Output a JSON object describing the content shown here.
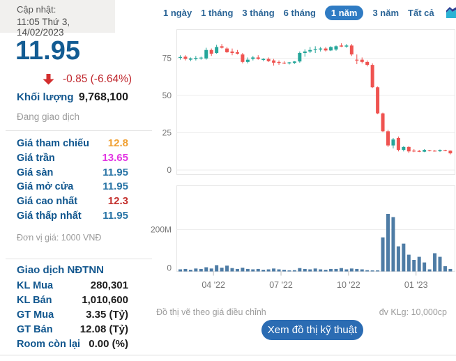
{
  "update": {
    "label": "Cập nhật:",
    "datetime": "11:05 Thứ 3, 14/02/2023"
  },
  "quote": {
    "price": "11.95",
    "change": "-0.85 (-6.64%)",
    "volume_label": "Khối lượng",
    "volume": "9,768,100",
    "status": "Đang giao dịch"
  },
  "price_table": {
    "rows": [
      {
        "label": "Giá tham chiếu",
        "value": "12.8",
        "color": "#f0a033"
      },
      {
        "label": "Giá trần",
        "value": "13.65",
        "color": "#e234e2"
      },
      {
        "label": "Giá sàn",
        "value": "11.95",
        "color": "#2773a5"
      },
      {
        "label": "Giá mở cửa",
        "value": "11.95",
        "color": "#2773a5"
      },
      {
        "label": "Giá cao nhất",
        "value": "12.3",
        "color": "#c4312e"
      },
      {
        "label": "Giá thấp nhất",
        "value": "11.95",
        "color": "#2773a5"
      }
    ],
    "unit_note": "Đơn vị giá: 1000 VNĐ"
  },
  "foreign": {
    "title": "Giao dịch NĐTNN",
    "rows": [
      {
        "label": "KL Mua",
        "value": "280,301"
      },
      {
        "label": "KL Bán",
        "value": "1,010,600"
      },
      {
        "label": "GT Mua",
        "value": "3.35 (Tỷ)"
      },
      {
        "label": "GT Bán",
        "value": "12.08 (Tỷ)"
      },
      {
        "label": "Room còn lại",
        "value": "0.00 (%)"
      }
    ]
  },
  "tabs": {
    "items": [
      "1 ngày",
      "1 tháng",
      "3 tháng",
      "6 tháng",
      "1 năm",
      "3 năm",
      "Tất cả"
    ],
    "active": "1 năm"
  },
  "footer": {
    "note": "Đồ thị vẽ theo giá điều chỉnh",
    "unit": "đv KLg: 10,000cp",
    "button_label": "Xem đồ thị kỹ thuật"
  },
  "colors": {
    "accent_blue": "#135c93",
    "label_blue": "#10568e",
    "tab_blue": "#2a6496",
    "tab_active_bg": "#2f7bc3",
    "change_red": "#c0272d",
    "button_bg": "#2b6cb3"
  },
  "chart_data": {
    "type": "candlestick",
    "title": "",
    "legend": [],
    "x_ticks": [
      "04 '22",
      "07 '22",
      "10 '22",
      "01 '23"
    ],
    "price_axis": {
      "ticks": [
        75,
        50,
        25,
        0
      ],
      "range": [
        0,
        95
      ],
      "grid": true
    },
    "volume_axis": {
      "tick_labels": [
        "200M",
        "0"
      ],
      "tick_values_millions": [
        200,
        0
      ],
      "range_millions": [
        0,
        460
      ]
    },
    "up_color": "#26a69a",
    "down_color": "#ef5350",
    "volume_color": "#4e7ca5",
    "grid_color": "#ededed",
    "frame_color": "#e6e6e6",
    "axis_text_color": "#767676",
    "candles_ohlc": [
      [
        75.5,
        77,
        74,
        75.8
      ],
      [
        76,
        77,
        73.5,
        74.5
      ],
      [
        74,
        75.5,
        73,
        74.8
      ],
      [
        74.5,
        76.5,
        73.5,
        75.2
      ],
      [
        75,
        76,
        74,
        75.4
      ],
      [
        74.8,
        82,
        74,
        80.5
      ],
      [
        80.5,
        81.5,
        76.5,
        78
      ],
      [
        78.5,
        84,
        78,
        82.5
      ],
      [
        83,
        84.5,
        81.5,
        82
      ],
      [
        81.5,
        82.5,
        78.5,
        79
      ],
      [
        79.5,
        81.5,
        77,
        78.5
      ],
      [
        79,
        80.5,
        77.5,
        78
      ],
      [
        77.5,
        78.5,
        71.5,
        72.5
      ],
      [
        72.5,
        75.5,
        71.5,
        74
      ],
      [
        74.5,
        76.5,
        73.5,
        75.5
      ],
      [
        75.5,
        77,
        74,
        74.5
      ],
      [
        73.8,
        75,
        73,
        74.5
      ],
      [
        74.5,
        75.5,
        72.5,
        73
      ],
      [
        73.5,
        74.5,
        70,
        72
      ],
      [
        72.5,
        73.5,
        70.5,
        71.8
      ],
      [
        72,
        73,
        71,
        71.5
      ],
      [
        71.5,
        72.5,
        70.8,
        72.2
      ],
      [
        71.8,
        73,
        71.2,
        72.8
      ],
      [
        72.8,
        79.5,
        72,
        78.5
      ],
      [
        78.5,
        81,
        76,
        79.5
      ],
      [
        79.5,
        82.5,
        78.5,
        80.5
      ],
      [
        80.5,
        83,
        78.5,
        81
      ],
      [
        80.8,
        82.5,
        79.5,
        81.5
      ],
      [
        81.5,
        82.5,
        79.5,
        80.2
      ],
      [
        80.2,
        83,
        79.8,
        82.5
      ],
      [
        80.8,
        83.5,
        80,
        83
      ],
      [
        83.5,
        85,
        82.5,
        82.8
      ],
      [
        82.8,
        84.5,
        82,
        83.5
      ],
      [
        83.5,
        84.5,
        76.5,
        77.5
      ],
      [
        74,
        77.5,
        71,
        73.5
      ],
      [
        74,
        75.5,
        71.5,
        72.5
      ],
      [
        72.5,
        73.5,
        69.5,
        70.5
      ],
      [
        70.5,
        71.5,
        55,
        55.5
      ],
      [
        55.5,
        56,
        37.5,
        38
      ],
      [
        38,
        38.5,
        25.5,
        26
      ],
      [
        26,
        27,
        15.5,
        16.5
      ],
      [
        16.5,
        21.5,
        14.5,
        20.5
      ],
      [
        21.5,
        22.5,
        12.5,
        13.5
      ],
      [
        13.5,
        16,
        12.5,
        15.5
      ],
      [
        15.5,
        16,
        11.5,
        12.5
      ],
      [
        13,
        14,
        12,
        12.5
      ],
      [
        12.8,
        13.5,
        12,
        12.3
      ],
      [
        12.3,
        14,
        12,
        13.5
      ],
      [
        13.2,
        13.5,
        12.5,
        12.8
      ],
      [
        13,
        13.3,
        12.4,
        12.7
      ],
      [
        12.6,
        13.8,
        12.2,
        13.4
      ],
      [
        13.4,
        13.6,
        12.6,
        12.9
      ],
      [
        13,
        13.2,
        10.5,
        11.2
      ]
    ],
    "volumes_millions": [
      10,
      12,
      8,
      14,
      12,
      20,
      14,
      30,
      18,
      28,
      16,
      12,
      18,
      12,
      10,
      12,
      8,
      10,
      14,
      10,
      8,
      5,
      6,
      16,
      12,
      10,
      14,
      10,
      8,
      12,
      12,
      16,
      10,
      14,
      12,
      10,
      6,
      4,
      3,
      163,
      275,
      260,
      120,
      133,
      80,
      55,
      70,
      43,
      10,
      87,
      70,
      25,
      12
    ]
  }
}
